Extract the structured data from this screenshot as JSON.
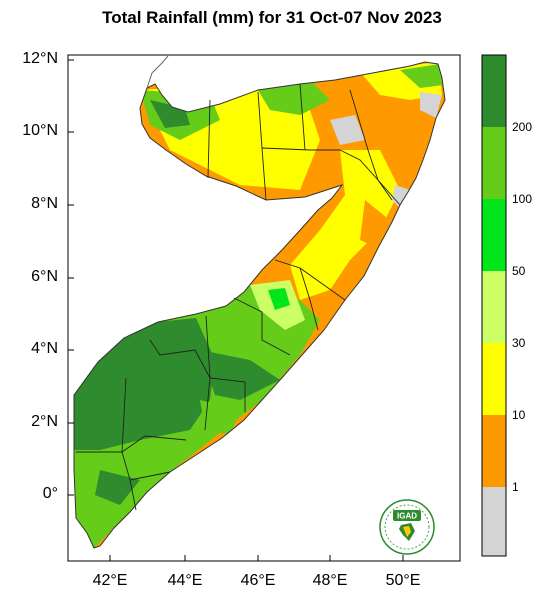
{
  "title": "Total Rainfall (mm) for 31 Oct-07 Nov 2023",
  "map": {
    "region": "Somalia",
    "x_ticks": [
      "42°E",
      "44°E",
      "46°E",
      "48°E",
      "50°E"
    ],
    "y_ticks": [
      "12°N",
      "10°N",
      "8°N",
      "6°N",
      "4°N",
      "2°N",
      "0°"
    ],
    "lon_range": [
      41,
      51.5
    ],
    "lat_range": [
      -1.7,
      12.3
    ]
  },
  "colorbar": {
    "labels": [
      "200",
      "100",
      "50",
      "30",
      "10",
      "1"
    ],
    "colors": [
      "#2e8b2e",
      "#66cc1a",
      "#00e61a",
      "#ccff66",
      "#ffff00",
      "#ff9900",
      "#d4d4d4"
    ]
  },
  "logo": {
    "text": "IGAD",
    "accent": "#2e8b2e"
  }
}
